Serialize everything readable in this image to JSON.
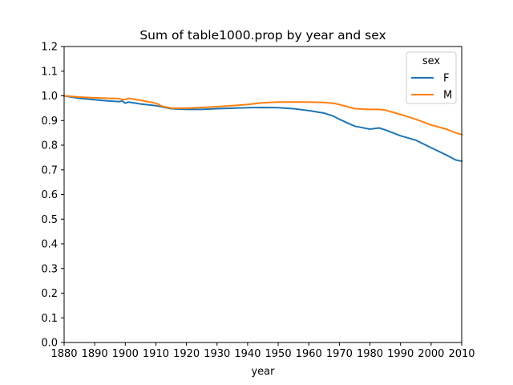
{
  "chart_data": {
    "type": "line",
    "title": "Sum of table1000.prop by year and sex",
    "xlabel": "year",
    "ylabel": "",
    "xlim": [
      1880,
      2010
    ],
    "ylim": [
      0.0,
      1.2
    ],
    "xticks": [
      "1880",
      "1890",
      "1900",
      "1910",
      "1920",
      "1930",
      "1940",
      "1950",
      "1960",
      "1970",
      "1980",
      "1990",
      "2000",
      "2010"
    ],
    "yticks": [
      "0.0",
      "0.1",
      "0.2",
      "0.3",
      "0.4",
      "0.5",
      "0.6",
      "0.7",
      "0.8",
      "0.9",
      "1.0",
      "1.1",
      "1.2"
    ],
    "grid": false,
    "legend": {
      "title": "sex",
      "position": "top-right"
    },
    "x": [
      1880,
      1885,
      1890,
      1895,
      1898,
      1899,
      1900,
      1901,
      1905,
      1910,
      1912,
      1915,
      1920,
      1925,
      1930,
      1935,
      1940,
      1945,
      1950,
      1955,
      1960,
      1965,
      1968,
      1970,
      1975,
      1980,
      1983,
      1985,
      1990,
      1995,
      2000,
      2005,
      2008,
      2010
    ],
    "series": [
      {
        "name": "F",
        "color": "#1f77b4",
        "values": [
          1.0,
          0.99,
          0.984,
          0.979,
          0.977,
          0.979,
          0.97,
          0.975,
          0.967,
          0.96,
          0.955,
          0.948,
          0.945,
          0.945,
          0.948,
          0.95,
          0.952,
          0.953,
          0.952,
          0.948,
          0.94,
          0.93,
          0.918,
          0.905,
          0.877,
          0.865,
          0.87,
          0.862,
          0.838,
          0.82,
          0.79,
          0.76,
          0.74,
          0.735
        ]
      },
      {
        "name": "M",
        "color": "#ff7f0e",
        "values": [
          1.0,
          0.995,
          0.992,
          0.99,
          0.989,
          0.985,
          0.985,
          0.99,
          0.982,
          0.97,
          0.958,
          0.95,
          0.95,
          0.953,
          0.956,
          0.96,
          0.965,
          0.972,
          0.975,
          0.975,
          0.975,
          0.973,
          0.97,
          0.965,
          0.948,
          0.945,
          0.945,
          0.942,
          0.925,
          0.905,
          0.882,
          0.865,
          0.85,
          0.843
        ]
      }
    ]
  }
}
